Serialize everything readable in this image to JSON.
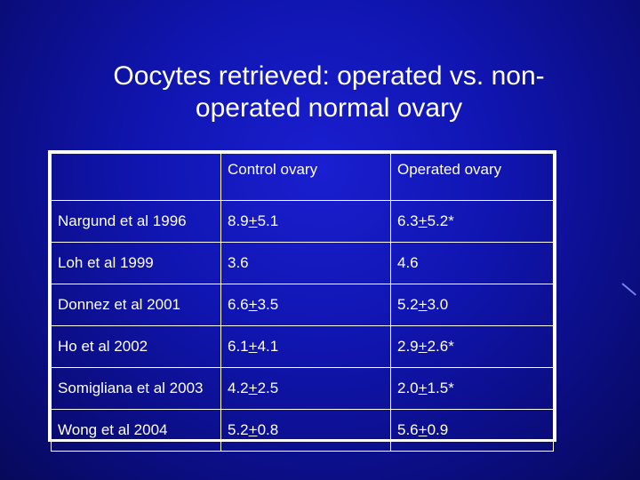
{
  "slide": {
    "title": "Oocytes retrieved: operated vs. non-operated normal ovary"
  },
  "table": {
    "headers": [
      "",
      "Control ovary",
      "Operated ovary"
    ],
    "rows": [
      {
        "study": "Nargund et al 1996",
        "control": {
          "mean": "8.9",
          "sd": "5.1",
          "mark": ""
        },
        "operated": {
          "mean": "6.3",
          "sd": "5.2",
          "mark": "*"
        }
      },
      {
        "study": "Loh et al 1999",
        "control": {
          "mean": "3.6",
          "sd": "",
          "mark": ""
        },
        "operated": {
          "mean": "4.6",
          "sd": "",
          "mark": ""
        }
      },
      {
        "study": "Donnez et al 2001",
        "control": {
          "mean": "6.6",
          "sd": "3.5",
          "mark": ""
        },
        "operated": {
          "mean": "5.2",
          "sd": "3.0",
          "mark": ""
        }
      },
      {
        "study": "Ho et al 2002",
        "control": {
          "mean": "6.1",
          "sd": "4.1",
          "mark": ""
        },
        "operated": {
          "mean": "2.9",
          "sd": "2.6",
          "mark": "*"
        }
      },
      {
        "study": "Somigliana et al 2003",
        "control": {
          "mean": "4.2",
          "sd": "2.5",
          "mark": ""
        },
        "operated": {
          "mean": "2.0",
          "sd": "1.5",
          "mark": "*"
        }
      },
      {
        "study": "Wong et al 2004",
        "control": {
          "mean": "5.2",
          "sd": "0.8",
          "mark": ""
        },
        "operated": {
          "mean": "5.6",
          "sd": "0.9",
          "mark": ""
        }
      }
    ],
    "plus_symbol": "+"
  },
  "colors": {
    "background": "#1015b0",
    "text": "#ffffff",
    "border": "#ffffff"
  }
}
